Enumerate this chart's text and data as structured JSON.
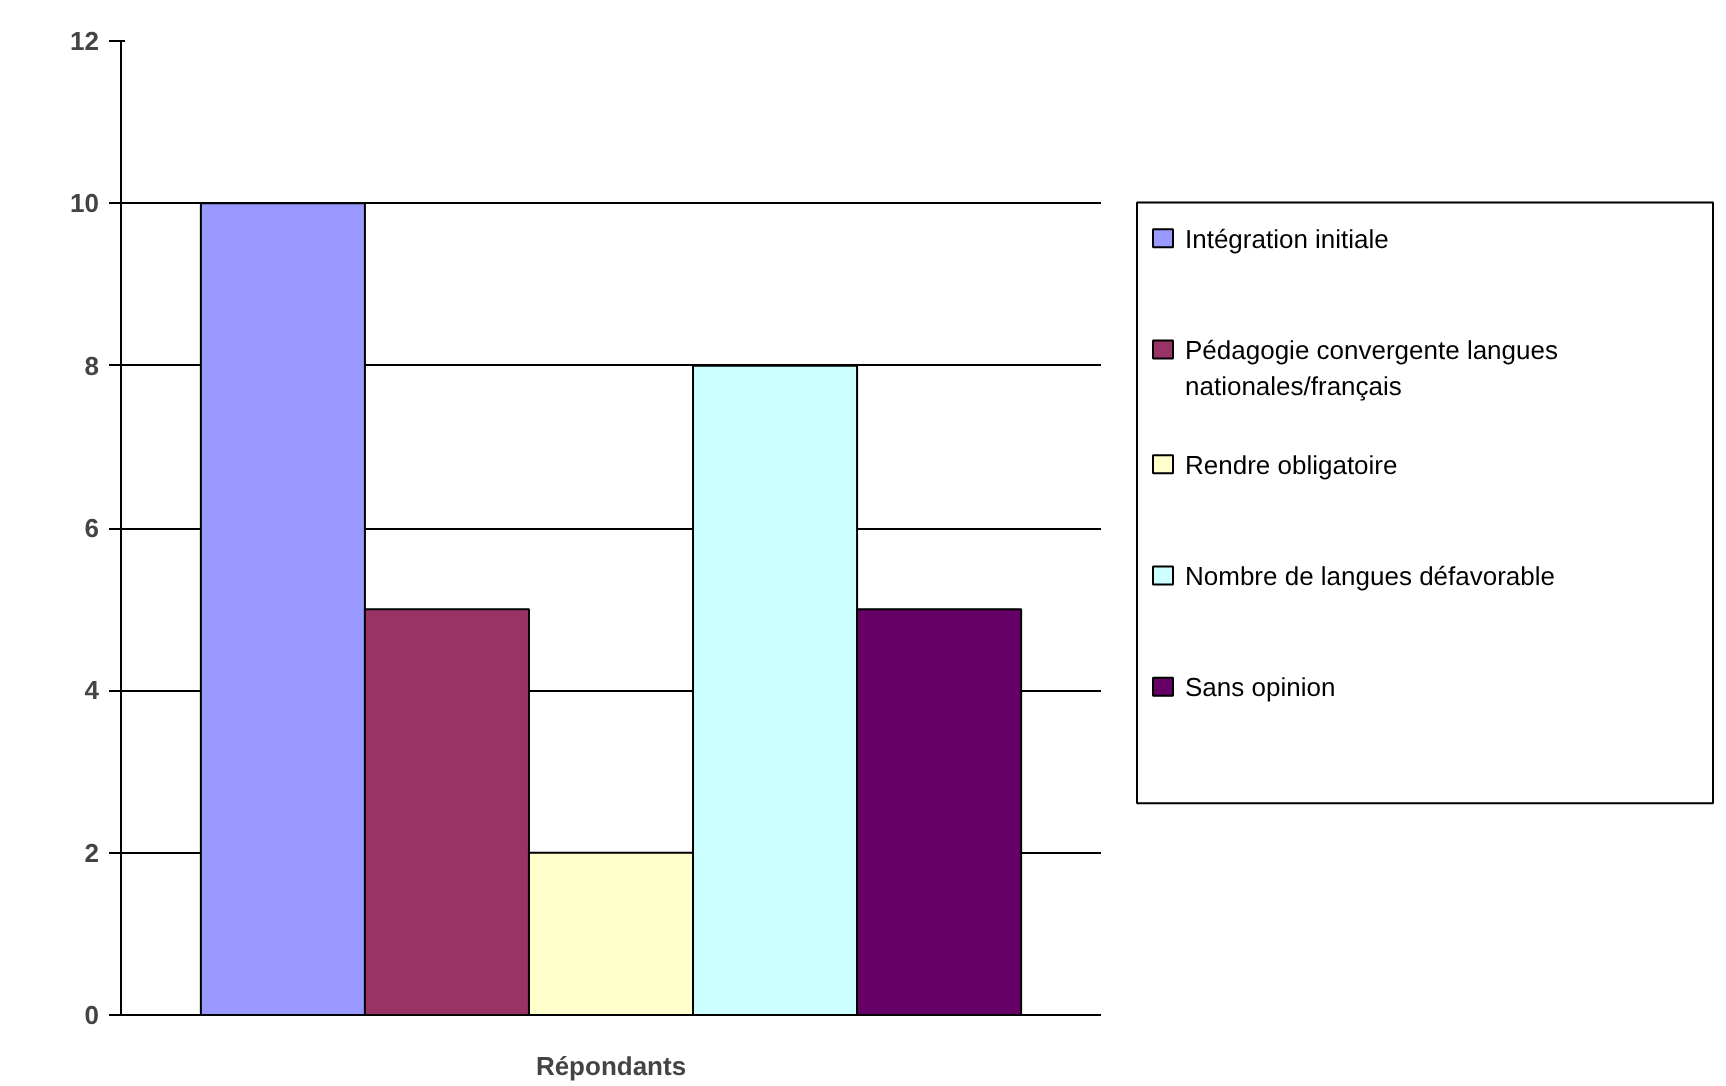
{
  "chart_data": {
    "type": "bar",
    "categories": [
      "Répondants"
    ],
    "series": [
      {
        "name": "Intégration initiale",
        "color": "#9999ff",
        "values": [
          10
        ]
      },
      {
        "name": "Pédagogie convergente langues nationales/français",
        "color": "#993366",
        "values": [
          5
        ]
      },
      {
        "name": "Rendre obligatoire",
        "color": "#ffffcc",
        "values": [
          2
        ]
      },
      {
        "name": "Nombre de langues défavorable",
        "color": "#ccffff",
        "values": [
          8
        ]
      },
      {
        "name": "Sans opinion",
        "color": "#660066",
        "values": [
          5
        ]
      }
    ],
    "ylim": [
      0,
      12
    ],
    "yticks": [
      0,
      2,
      4,
      6,
      8,
      10,
      12
    ],
    "grid": "y",
    "legend": "right"
  }
}
